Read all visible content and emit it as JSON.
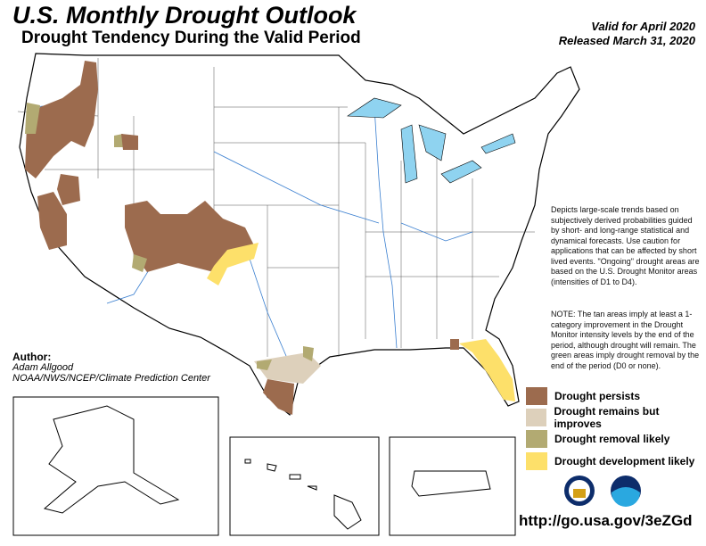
{
  "header": {
    "title": "U.S. Monthly Drought Outlook",
    "subtitle": "Drought Tendency During the Valid Period",
    "valid": "Valid for April 2020",
    "released": "Released March 31, 2020"
  },
  "description": "Depicts large-scale trends based on subjectively derived probabilities guided by short- and long-range statistical and dynamical forecasts. Use caution for applications that can be affected by short lived events. \"Ongoing\" drought areas are based on the U.S. Drought Monitor areas (intensities of D1 to D4).",
  "note": "NOTE: The tan areas imply at least a 1-category improvement in the Drought Monitor intensity levels by the end of the period, although drought will remain. The green areas imply drought removal by the end of the period (D0 or none).",
  "author": {
    "label": "Author:",
    "name": "Adam Allgood",
    "org": "NOAA/NWS/NCEP/Climate Prediction Center"
  },
  "legend": [
    {
      "label": "Drought persists",
      "color": "#9c6b4e"
    },
    {
      "label": "Drought remains but improves",
      "color": "#ddd0bb"
    },
    {
      "label": "Drought removal likely",
      "color": "#b2aa72"
    },
    {
      "label": "Drought development likely",
      "color": "#fde06a"
    }
  ],
  "url": "http://go.usa.gov/3eZGd",
  "colors": {
    "water": "#8fd3f0",
    "river": "#3a7fd0"
  }
}
